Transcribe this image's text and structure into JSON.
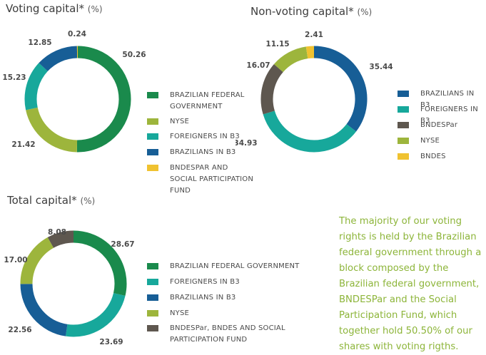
{
  "note": "The majority of our voting rights is held by the Brazilian federal government through a block composed by the Brazilian federal government, BNDESPar and the Social Participation Fund, which together hold 50.50% of our shares with voting rigths.",
  "chart_data": [
    {
      "type": "pie",
      "title": "Voting capital*",
      "unit": "(%)",
      "slices": [
        {
          "label": "BRAZILIAN FEDERAL GOVERNMENT",
          "value": 50.26,
          "display": "50.26",
          "color": "#1a8a4c"
        },
        {
          "label": "NYSE",
          "value": 21.42,
          "display": "21.42",
          "color": "#9db53c"
        },
        {
          "label": "FOREIGNERS IN B3",
          "value": 15.23,
          "display": "15.23",
          "color": "#17a89b"
        },
        {
          "label": "BRAZILIANS IN B3",
          "value": 12.85,
          "display": "12.85",
          "color": "#175e96"
        },
        {
          "label": "BNDESPAR AND SOCIAL PARTICIPATION FUND",
          "value": 0.24,
          "display": "0.24",
          "color": "#f0c230"
        }
      ]
    },
    {
      "type": "pie",
      "title": "Non-voting capital*",
      "unit": "(%)",
      "slices": [
        {
          "label": "BRAZILIANS IN B3",
          "value": 35.44,
          "display": "35.44",
          "color": "#175e96"
        },
        {
          "label": "FOREIGNERS IN B3",
          "value": 34.93,
          "display": "34.93",
          "color": "#17a89b"
        },
        {
          "label": "BNDESPar",
          "value": 16.07,
          "display": "16.07",
          "color": "#5e574f"
        },
        {
          "label": "NYSE",
          "value": 11.15,
          "display": "11.15",
          "color": "#9db53c"
        },
        {
          "label": "BNDES",
          "value": 2.41,
          "display": "2.41",
          "color": "#f0c230"
        }
      ]
    },
    {
      "type": "pie",
      "title": "Total capital*",
      "unit": "(%)",
      "slices": [
        {
          "label": "BRAZILIAN FEDERAL GOVERNMENT",
          "value": 28.67,
          "display": "28.67",
          "color": "#1a8a4c"
        },
        {
          "label": "FOREIGNERS IN B3",
          "value": 23.69,
          "display": "23.69",
          "color": "#17a89b"
        },
        {
          "label": "BRAZILIANS IN B3",
          "value": 22.56,
          "display": "22.56",
          "color": "#175e96"
        },
        {
          "label": "NYSE",
          "value": 17.0,
          "display": "17.00",
          "color": "#9db53c"
        },
        {
          "label": "BNDESPar, BNDES AND SOCIAL PARTICIPATION FUND",
          "value": 8.08,
          "display": "8.08",
          "color": "#5e574f"
        }
      ]
    }
  ]
}
